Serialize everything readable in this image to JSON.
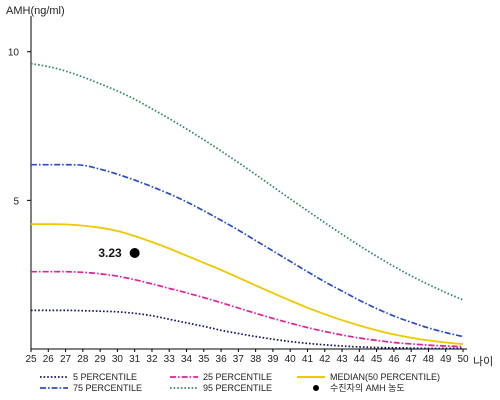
{
  "chart_data": {
    "type": "line",
    "ylabel": "AMH(ng/ml)",
    "xlabel": "나이",
    "x": [
      25,
      26,
      27,
      28,
      29,
      30,
      31,
      32,
      33,
      34,
      35,
      36,
      37,
      38,
      39,
      40,
      41,
      42,
      43,
      44,
      45,
      46,
      47,
      48,
      49,
      50
    ],
    "xlim": [
      25,
      50
    ],
    "ylim": [
      0,
      11
    ],
    "yticks": [
      5,
      10
    ],
    "grid": false,
    "legend_position": "bottom",
    "series": [
      {
        "name": "5 PERCENTILE",
        "color": "#101060",
        "style": "dotted",
        "values": [
          1.3,
          1.3,
          1.3,
          1.29,
          1.27,
          1.25,
          1.2,
          1.12,
          1.0,
          0.88,
          0.76,
          0.63,
          0.52,
          0.42,
          0.33,
          0.25,
          0.19,
          0.14,
          0.1,
          0.07,
          0.05,
          0.04,
          0.03,
          0.02,
          0.02,
          0.02
        ]
      },
      {
        "name": "25 PERCENTILE",
        "color": "#e0209a",
        "style": "dashdot",
        "values": [
          2.6,
          2.6,
          2.6,
          2.58,
          2.53,
          2.45,
          2.33,
          2.19,
          2.04,
          1.89,
          1.73,
          1.56,
          1.38,
          1.2,
          1.03,
          0.87,
          0.72,
          0.59,
          0.47,
          0.37,
          0.29,
          0.22,
          0.17,
          0.13,
          0.1,
          0.08
        ]
      },
      {
        "name": "MEDIAN(50 PERCENTILE)",
        "color": "#f0c800",
        "style": "solid",
        "values": [
          4.2,
          4.2,
          4.19,
          4.15,
          4.08,
          3.97,
          3.8,
          3.6,
          3.38,
          3.14,
          2.9,
          2.66,
          2.4,
          2.14,
          1.88,
          1.63,
          1.39,
          1.17,
          0.97,
          0.79,
          0.63,
          0.49,
          0.38,
          0.29,
          0.22,
          0.16
        ]
      },
      {
        "name": "75 PERCENTILE",
        "color": "#2a4cc8",
        "style": "dashdot",
        "values": [
          6.2,
          6.2,
          6.2,
          6.18,
          6.05,
          5.88,
          5.68,
          5.46,
          5.22,
          4.95,
          4.65,
          4.33,
          4.0,
          3.65,
          3.3,
          2.95,
          2.6,
          2.26,
          1.95,
          1.64,
          1.36,
          1.11,
          0.9,
          0.71,
          0.55,
          0.42
        ]
      },
      {
        "name": "95 PERCENTILE",
        "color": "#2a8a5a",
        "style": "dotted",
        "values": [
          9.6,
          9.5,
          9.35,
          9.15,
          8.92,
          8.68,
          8.4,
          8.08,
          7.75,
          7.4,
          7.04,
          6.66,
          6.27,
          5.87,
          5.46,
          5.05,
          4.65,
          4.25,
          3.86,
          3.48,
          3.12,
          2.78,
          2.46,
          2.17,
          1.9,
          1.65
        ]
      }
    ],
    "points": [
      {
        "name": "수진자의 AMH 농도",
        "x": 31,
        "y": 3.23,
        "label": "3.23",
        "color": "#000000"
      }
    ]
  }
}
